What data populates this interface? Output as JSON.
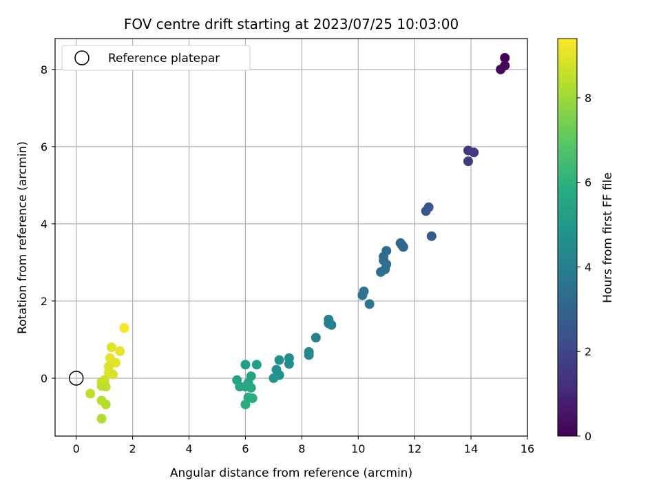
{
  "chart_data": {
    "type": "scatter",
    "title": "FOV centre drift starting at 2023/07/25 10:03:00",
    "xlabel": "Angular distance from reference (arcmin)",
    "ylabel": "Rotation from reference (arcmin)",
    "xlim": [
      -0.75,
      16.0
    ],
    "ylim": [
      -1.5,
      8.8
    ],
    "xticks": [
      0,
      2,
      4,
      6,
      8,
      10,
      12,
      14,
      16
    ],
    "yticks": [
      0,
      2,
      4,
      6,
      8
    ],
    "grid": true,
    "legend": {
      "placement": "top-left",
      "entries": [
        "Reference platepar"
      ]
    },
    "reference_point": {
      "x": 0,
      "y": 0
    },
    "colorbar": {
      "label": "Hours from first FF file",
      "colormap": "viridis",
      "range": [
        0,
        9.4
      ],
      "ticks": [
        0,
        2,
        4,
        6,
        8
      ]
    },
    "points": [
      {
        "x": 15.2,
        "y": 8.3,
        "c": 0.0
      },
      {
        "x": 15.2,
        "y": 8.1,
        "c": 0.1
      },
      {
        "x": 15.05,
        "y": 8.0,
        "c": 0.2
      },
      {
        "x": 13.9,
        "y": 5.9,
        "c": 1.5
      },
      {
        "x": 14.1,
        "y": 5.85,
        "c": 1.6
      },
      {
        "x": 13.9,
        "y": 5.62,
        "c": 1.7
      },
      {
        "x": 12.4,
        "y": 4.33,
        "c": 2.5
      },
      {
        "x": 12.5,
        "y": 4.43,
        "c": 2.55
      },
      {
        "x": 12.6,
        "y": 3.68,
        "c": 2.7
      },
      {
        "x": 11.5,
        "y": 3.5,
        "c": 3.0
      },
      {
        "x": 11.6,
        "y": 3.4,
        "c": 3.05
      },
      {
        "x": 11.55,
        "y": 3.45,
        "c": 3.1
      },
      {
        "x": 11.0,
        "y": 3.3,
        "c": 3.2
      },
      {
        "x": 10.9,
        "y": 3.15,
        "c": 3.25
      },
      {
        "x": 10.9,
        "y": 3.05,
        "c": 3.3
      },
      {
        "x": 11.0,
        "y": 2.95,
        "c": 3.35
      },
      {
        "x": 10.95,
        "y": 2.82,
        "c": 3.4
      },
      {
        "x": 10.8,
        "y": 2.75,
        "c": 3.45
      },
      {
        "x": 10.2,
        "y": 2.25,
        "c": 3.6
      },
      {
        "x": 10.15,
        "y": 2.15,
        "c": 3.65
      },
      {
        "x": 10.4,
        "y": 1.92,
        "c": 3.7
      },
      {
        "x": 8.95,
        "y": 1.52,
        "c": 4.0
      },
      {
        "x": 9.05,
        "y": 1.38,
        "c": 4.05
      },
      {
        "x": 8.95,
        "y": 1.42,
        "c": 4.1
      },
      {
        "x": 8.5,
        "y": 1.05,
        "c": 4.2
      },
      {
        "x": 8.25,
        "y": 0.68,
        "c": 4.3
      },
      {
        "x": 8.25,
        "y": 0.6,
        "c": 4.35
      },
      {
        "x": 7.55,
        "y": 0.52,
        "c": 4.6
      },
      {
        "x": 7.55,
        "y": 0.37,
        "c": 4.65
      },
      {
        "x": 7.2,
        "y": 0.47,
        "c": 4.7
      },
      {
        "x": 7.1,
        "y": 0.22,
        "c": 4.75
      },
      {
        "x": 7.2,
        "y": 0.08,
        "c": 4.8
      },
      {
        "x": 7.0,
        "y": 0.0,
        "c": 4.85
      },
      {
        "x": 6.0,
        "y": 0.35,
        "c": 5.3
      },
      {
        "x": 6.4,
        "y": 0.35,
        "c": 5.35
      },
      {
        "x": 6.2,
        "y": 0.05,
        "c": 5.4
      },
      {
        "x": 5.7,
        "y": -0.05,
        "c": 5.45
      },
      {
        "x": 6.1,
        "y": -0.12,
        "c": 5.5
      },
      {
        "x": 5.8,
        "y": -0.22,
        "c": 5.55
      },
      {
        "x": 6.0,
        "y": -0.22,
        "c": 5.6
      },
      {
        "x": 6.2,
        "y": -0.25,
        "c": 5.65
      },
      {
        "x": 6.1,
        "y": -0.5,
        "c": 5.7
      },
      {
        "x": 6.25,
        "y": -0.52,
        "c": 5.75
      },
      {
        "x": 6.0,
        "y": -0.68,
        "c": 5.8
      },
      {
        "x": 1.7,
        "y": 1.3,
        "c": 9.3
      },
      {
        "x": 1.25,
        "y": 0.8,
        "c": 9.0
      },
      {
        "x": 1.55,
        "y": 0.7,
        "c": 9.1
      },
      {
        "x": 1.2,
        "y": 0.52,
        "c": 9.05
      },
      {
        "x": 1.4,
        "y": 0.4,
        "c": 9.0
      },
      {
        "x": 1.15,
        "y": 0.3,
        "c": 8.9
      },
      {
        "x": 1.15,
        "y": 0.15,
        "c": 8.95
      },
      {
        "x": 1.3,
        "y": 0.1,
        "c": 8.85
      },
      {
        "x": 1.0,
        "y": -0.05,
        "c": 8.7
      },
      {
        "x": 0.9,
        "y": -0.1,
        "c": 8.6
      },
      {
        "x": 1.0,
        "y": -0.15,
        "c": 8.65
      },
      {
        "x": 0.9,
        "y": -0.2,
        "c": 8.55
      },
      {
        "x": 1.05,
        "y": -0.22,
        "c": 8.5
      },
      {
        "x": 0.5,
        "y": -0.4,
        "c": 8.45
      },
      {
        "x": 0.9,
        "y": -0.58,
        "c": 8.4
      },
      {
        "x": 1.05,
        "y": -0.68,
        "c": 8.35
      },
      {
        "x": 0.9,
        "y": -1.05,
        "c": 8.3
      }
    ]
  }
}
